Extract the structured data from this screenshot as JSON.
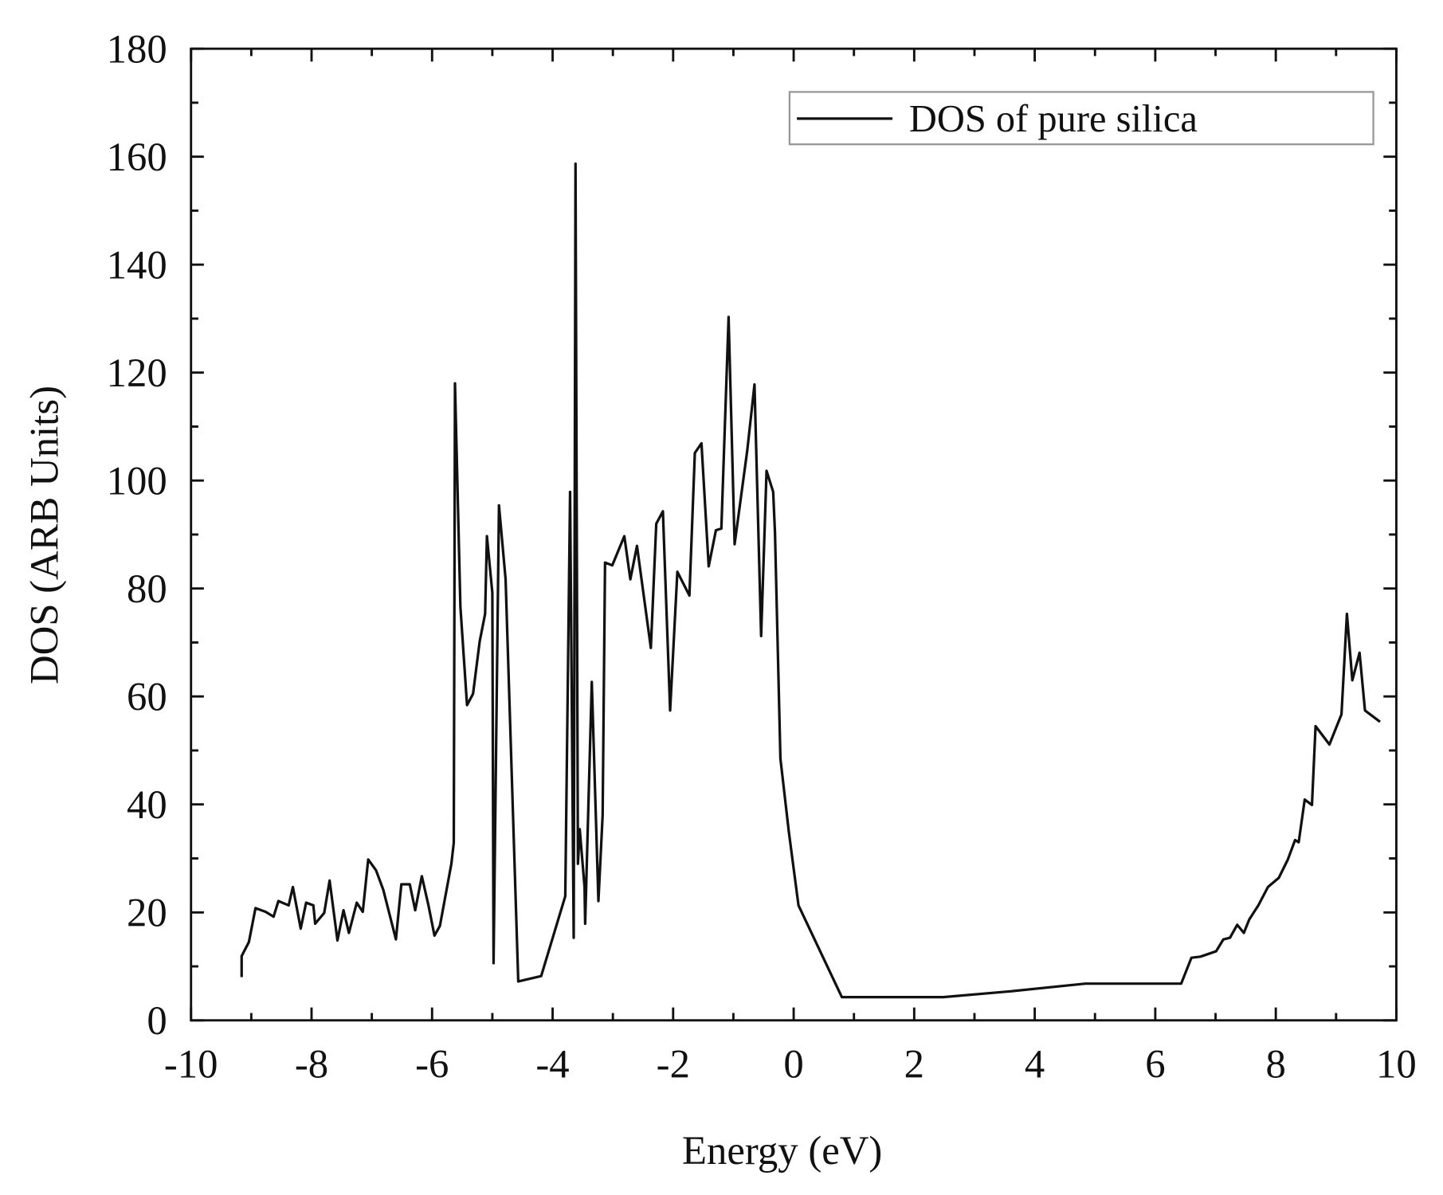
{
  "chart_data": {
    "type": "line",
    "xlabel": "Energy (eV)",
    "ylabel": "DOS (ARB Units)",
    "xlim": [
      -10,
      10
    ],
    "ylim": [
      0,
      180
    ],
    "xticks": [
      -10,
      -8,
      -6,
      -4,
      -2,
      0,
      2,
      4,
      6,
      8,
      10
    ],
    "yticks": [
      0,
      20,
      40,
      60,
      80,
      100,
      120,
      140,
      160,
      180
    ],
    "minor_xticks": [
      -9,
      -7,
      -5,
      -3,
      -1,
      1,
      3,
      5,
      7,
      9
    ],
    "minor_yticks": [
      10,
      30,
      50,
      70,
      90,
      110,
      130,
      150,
      170
    ],
    "grid": false,
    "legend": "upper right",
    "series": [
      {
        "name": "DOS of pure silica",
        "color": "#111111",
        "x": [
          -9.16,
          -9.16,
          -9.04,
          -8.93,
          -8.76,
          -8.63,
          -8.55,
          -8.38,
          -8.31,
          -8.18,
          -8.09,
          -7.97,
          -7.94,
          -7.79,
          -7.7,
          -7.57,
          -7.47,
          -7.38,
          -7.25,
          -7.15,
          -7.06,
          -6.93,
          -6.81,
          -6.6,
          -6.51,
          -6.37,
          -6.28,
          -6.17,
          -6.06,
          -5.96,
          -5.87,
          -5.68,
          -5.64,
          -5.62,
          -5.53,
          -5.42,
          -5.32,
          -5.21,
          -5.12,
          -5.09,
          -5.0,
          -4.98,
          -4.89,
          -4.78,
          -4.57,
          -4.19,
          -3.79,
          -3.71,
          -3.65,
          -3.62,
          -3.58,
          -3.55,
          -3.47,
          -3.46,
          -3.35,
          -3.24,
          -3.17,
          -3.13,
          -3.01,
          -2.81,
          -2.71,
          -2.6,
          -2.37,
          -2.28,
          -2.17,
          -2.05,
          -1.93,
          -1.73,
          -1.64,
          -1.53,
          -1.41,
          -1.29,
          -1.2,
          -1.08,
          -0.98,
          -0.77,
          -0.65,
          -0.54,
          -0.45,
          -0.34,
          -0.31,
          -0.22,
          -0.08,
          0.08,
          0.8,
          2.48,
          3.62,
          4.84,
          6.43,
          6.6,
          6.75,
          7.01,
          7.13,
          7.24,
          7.36,
          7.47,
          7.56,
          7.71,
          7.87,
          8.05,
          8.2,
          8.32,
          8.38,
          8.48,
          8.6,
          8.66,
          8.89,
          9.09,
          9.18,
          9.27,
          9.39,
          9.48,
          9.73
        ],
        "values": [
          8.0,
          11.9,
          14.5,
          20.8,
          20.1,
          19.2,
          22.1,
          21.3,
          24.7,
          17.0,
          21.8,
          21.3,
          17.9,
          19.9,
          25.9,
          14.8,
          20.4,
          16.2,
          21.8,
          20.1,
          29.8,
          27.8,
          24.2,
          15.0,
          25.2,
          25.2,
          20.4,
          26.7,
          21.3,
          15.7,
          17.5,
          29.0,
          32.9,
          118.0,
          76.6,
          58.4,
          60.5,
          70.2,
          75.3,
          89.7,
          79.2,
          10.6,
          95.4,
          81.7,
          7.2,
          8.2,
          23.0,
          97.9,
          15.3,
          158.7,
          29.0,
          35.4,
          24.7,
          17.9,
          62.7,
          22.1,
          38.0,
          84.8,
          84.3,
          89.7,
          81.7,
          87.9,
          69.0,
          92.0,
          94.3,
          57.4,
          83.1,
          78.7,
          105.1,
          106.9,
          84.1,
          90.8,
          91.1,
          130.3,
          88.2,
          105.6,
          117.8,
          71.2,
          101.8,
          97.9,
          90.3,
          48.5,
          34.9,
          21.3,
          4.3,
          4.3,
          5.4,
          6.8,
          6.8,
          11.6,
          11.8,
          12.8,
          15.0,
          15.3,
          17.7,
          16.2,
          18.7,
          21.3,
          24.7,
          26.4,
          29.8,
          33.4,
          33.0,
          40.9,
          39.9,
          54.5,
          51.1,
          56.7,
          75.3,
          63.0,
          68.1,
          57.4,
          55.3
        ]
      }
    ]
  }
}
